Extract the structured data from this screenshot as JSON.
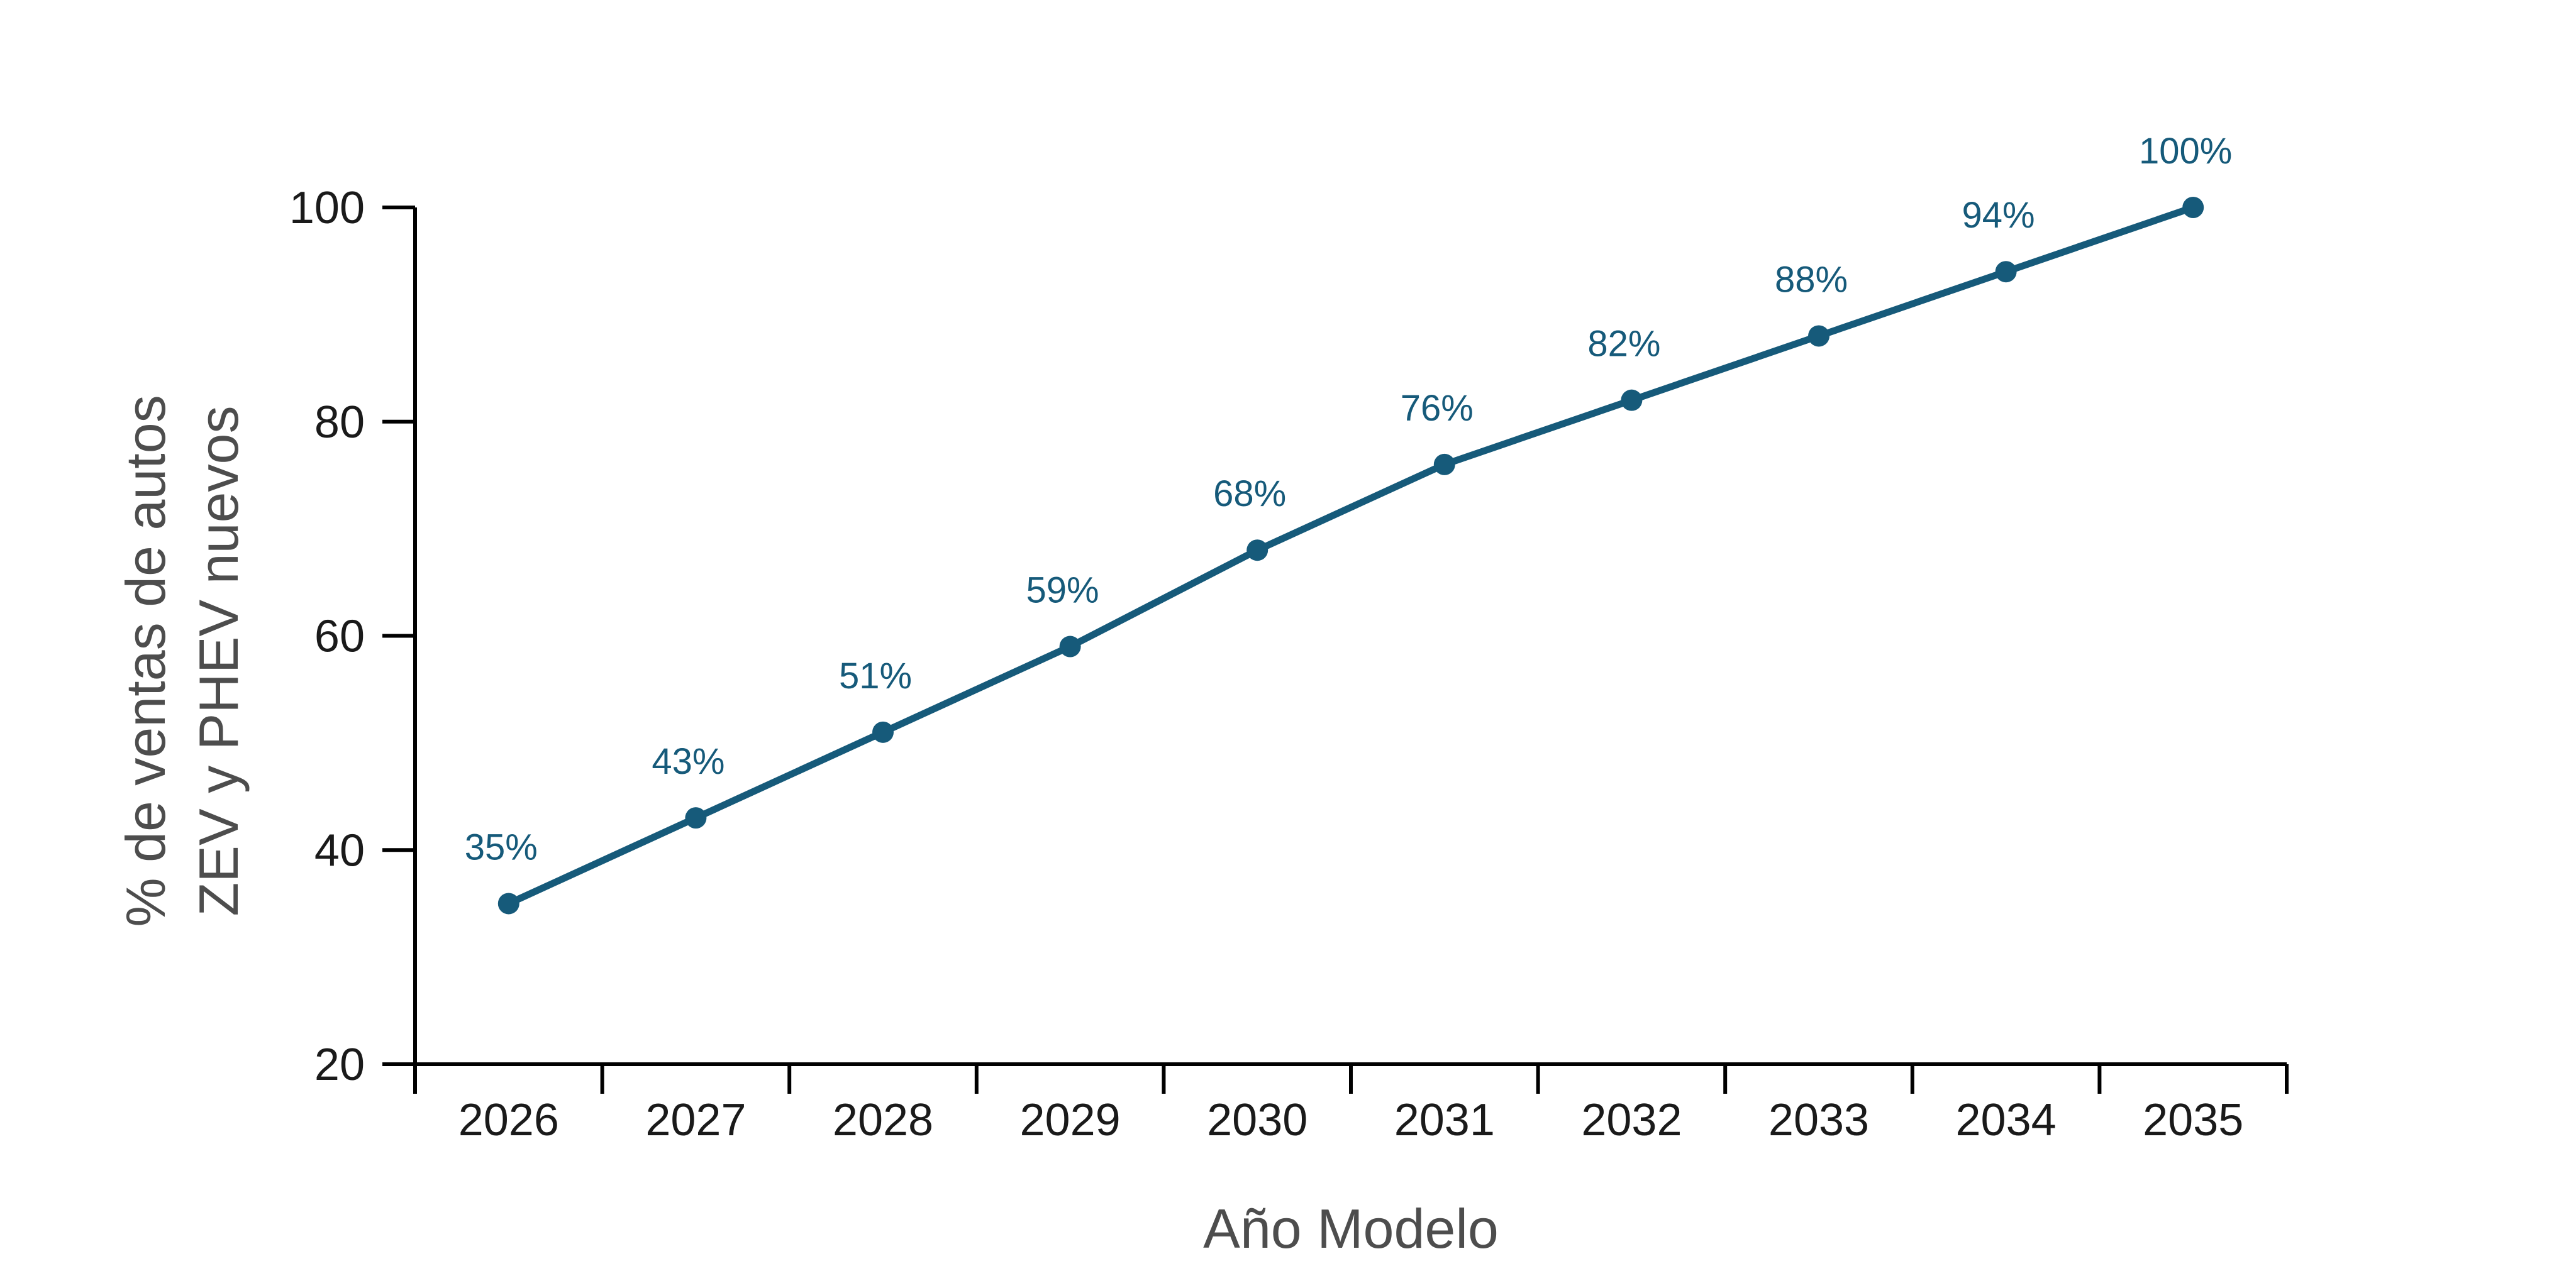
{
  "chart_data": {
    "type": "line",
    "title": "",
    "xlabel": "Año Modelo",
    "ylabel_lines": [
      "% de ventas de autos",
      "ZEV y PHEV nuevos"
    ],
    "categories": [
      "2026",
      "2027",
      "2028",
      "2029",
      "2030",
      "2031",
      "2032",
      "2033",
      "2034",
      "2035"
    ],
    "series": [
      {
        "values": [
          35,
          43,
          51,
          59,
          68,
          76,
          82,
          88,
          94,
          100
        ],
        "labels": [
          "35%",
          "43%",
          "51%",
          "59%",
          "68%",
          "76%",
          "82%",
          "88%",
          "94%",
          "100%"
        ],
        "color": "#165a7a"
      }
    ],
    "ylim": [
      20,
      100
    ],
    "yticks": [
      20,
      40,
      60,
      80,
      100
    ],
    "grid": false,
    "legend": "none"
  }
}
